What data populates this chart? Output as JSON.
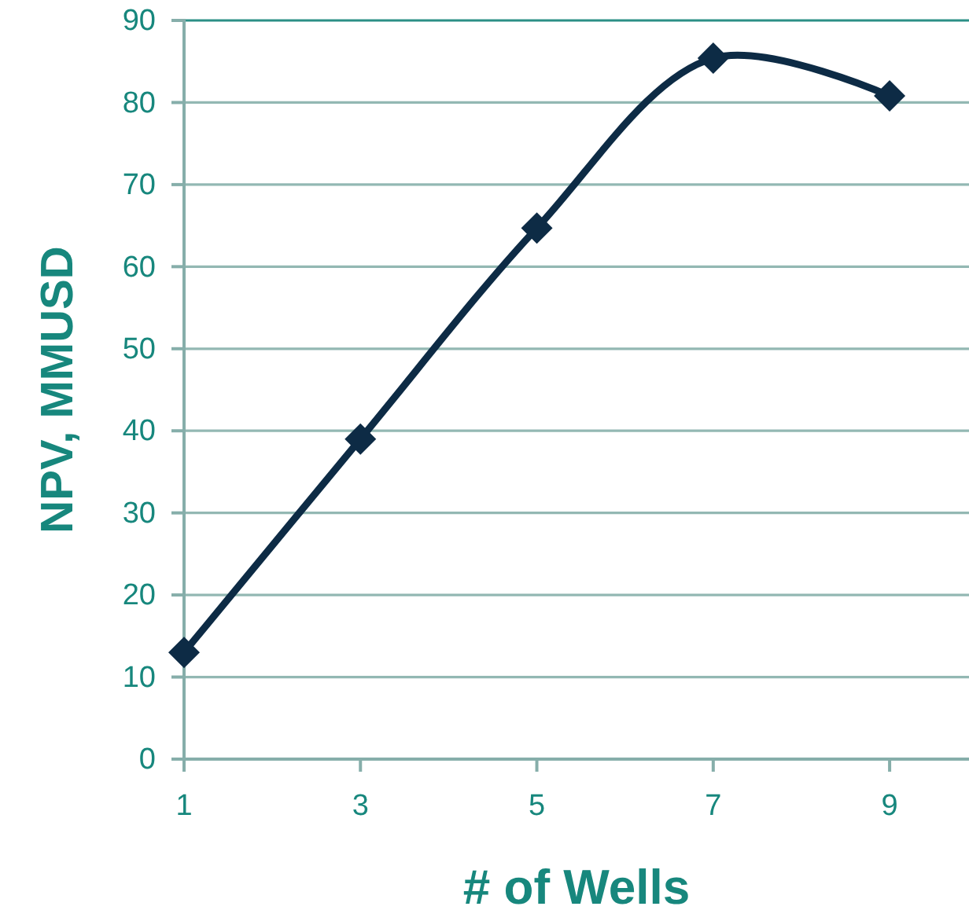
{
  "chart_data": {
    "type": "line",
    "xlabel": "# of Wells",
    "ylabel": "NPV, MMUSD",
    "x": [
      1,
      3,
      5,
      7,
      9
    ],
    "series": [
      {
        "color": "#0d2b45",
        "values": [
          13,
          39,
          64.7,
          85.4,
          80.8
        ]
      }
    ],
    "xlim": [
      1,
      9.9
    ],
    "xticks": [
      1,
      3,
      5,
      7,
      9
    ],
    "ylim": [
      0,
      90
    ],
    "yticks": [
      0,
      10,
      20,
      30,
      40,
      50,
      60,
      70,
      80,
      90
    ],
    "grid": "y",
    "marker": "diamond",
    "line_style": "solid"
  }
}
